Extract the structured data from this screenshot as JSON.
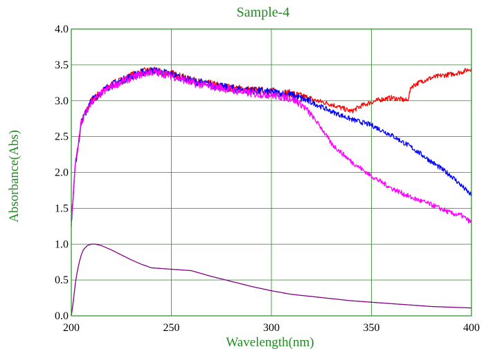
{
  "chart_data": {
    "type": "line",
    "title": "Sample-4",
    "xlabel": "Wavelength(nm)",
    "ylabel": "Absorbance(Abs)",
    "xlim": [
      200,
      400
    ],
    "ylim": [
      0.0,
      4.0
    ],
    "xticks": [
      "200",
      "250",
      "300",
      "350",
      "400"
    ],
    "yticks": [
      "0.0",
      "0.5",
      "1.0",
      "1.5",
      "2.0",
      "2.5",
      "3.0",
      "3.5",
      "4.0"
    ],
    "grid": true,
    "colors": {
      "grid": "#1e8c1e",
      "axis_text": "#1e8c1e"
    },
    "series": [
      {
        "color": "#ff0000",
        "x": [
          200,
          202,
          205,
          210,
          215,
          220,
          225,
          230,
          235,
          240,
          245,
          250,
          255,
          260,
          270,
          280,
          290,
          300,
          310,
          320,
          330,
          340,
          345,
          350,
          355,
          360,
          365,
          368,
          370,
          375,
          380,
          385,
          390,
          395,
          400
        ],
        "y": [
          1.3,
          2.1,
          2.7,
          3.0,
          3.12,
          3.22,
          3.28,
          3.35,
          3.4,
          3.42,
          3.4,
          3.38,
          3.33,
          3.28,
          3.23,
          3.18,
          3.15,
          3.13,
          3.1,
          3.02,
          2.95,
          2.85,
          2.93,
          2.98,
          3.02,
          3.04,
          3.02,
          3.0,
          3.2,
          3.27,
          3.32,
          3.35,
          3.37,
          3.4,
          3.45
        ]
      },
      {
        "color": "#0000ff",
        "x": [
          200,
          202,
          205,
          210,
          215,
          220,
          225,
          230,
          235,
          240,
          245,
          250,
          255,
          260,
          270,
          280,
          290,
          300,
          310,
          320,
          330,
          340,
          350,
          360,
          370,
          380,
          390,
          400
        ],
        "y": [
          1.3,
          2.1,
          2.7,
          3.0,
          3.12,
          3.22,
          3.28,
          3.34,
          3.39,
          3.42,
          3.4,
          3.37,
          3.32,
          3.28,
          3.22,
          3.17,
          3.14,
          3.12,
          3.08,
          2.98,
          2.85,
          2.74,
          2.66,
          2.52,
          2.35,
          2.15,
          1.95,
          1.68
        ]
      },
      {
        "color": "#ff00ff",
        "x": [
          200,
          202,
          205,
          210,
          215,
          220,
          225,
          230,
          235,
          240,
          245,
          250,
          255,
          260,
          270,
          280,
          290,
          300,
          310,
          315,
          320,
          325,
          330,
          340,
          350,
          360,
          370,
          380,
          390,
          395,
          400
        ],
        "y": [
          1.3,
          2.1,
          2.7,
          2.98,
          3.1,
          3.2,
          3.26,
          3.32,
          3.37,
          3.4,
          3.38,
          3.35,
          3.3,
          3.25,
          3.2,
          3.15,
          3.1,
          3.08,
          3.03,
          2.95,
          2.8,
          2.62,
          2.4,
          2.15,
          1.95,
          1.78,
          1.65,
          1.55,
          1.43,
          1.4,
          1.3
        ]
      },
      {
        "color": "#800080",
        "x": [
          200,
          201,
          202,
          203,
          204,
          205,
          206,
          208,
          210,
          212,
          215,
          220,
          225,
          230,
          235,
          240,
          250,
          260,
          270,
          280,
          290,
          300,
          310,
          320,
          330,
          340,
          350,
          360,
          370,
          380,
          390,
          400
        ],
        "y": [
          0.0,
          0.2,
          0.45,
          0.62,
          0.75,
          0.85,
          0.92,
          0.98,
          1.0,
          1.0,
          0.98,
          0.92,
          0.85,
          0.78,
          0.72,
          0.67,
          0.65,
          0.63,
          0.55,
          0.48,
          0.41,
          0.35,
          0.3,
          0.27,
          0.24,
          0.21,
          0.19,
          0.17,
          0.15,
          0.13,
          0.12,
          0.11
        ]
      }
    ]
  }
}
